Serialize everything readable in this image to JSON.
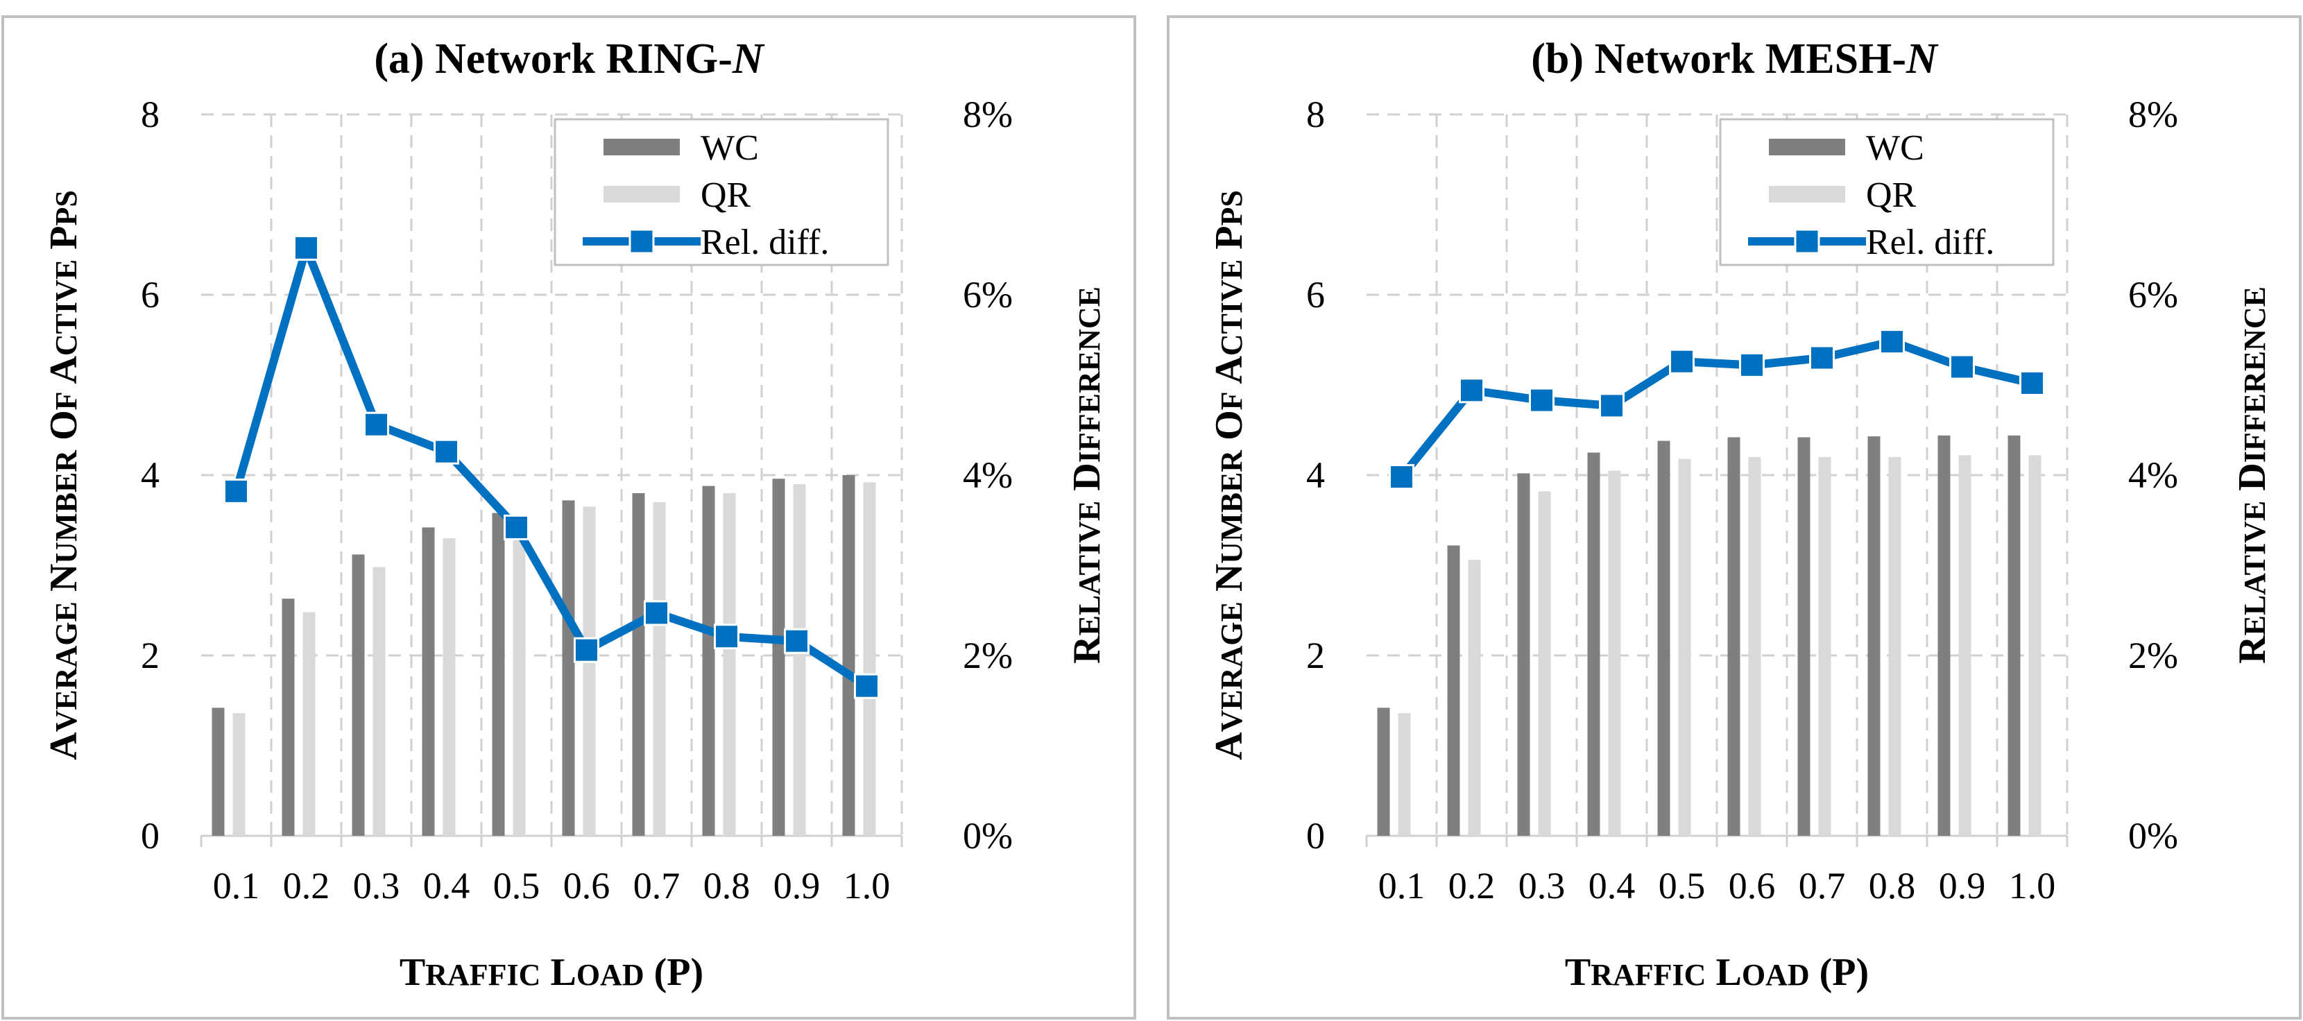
{
  "chart_data": [
    {
      "type": "bar",
      "title_prefix": "(a) Network RING-",
      "title_italic": "N",
      "xlabel": "Traffic load (ρ)",
      "ylabel": "Average number of active PPs",
      "y2label": "Relative difference",
      "categories": [
        "0.1",
        "0.2",
        "0.3",
        "0.4",
        "0.5",
        "0.6",
        "0.7",
        "0.8",
        "0.9",
        "1.0"
      ],
      "ylim": [
        0,
        8
      ],
      "yticks": [
        "0",
        "2",
        "4",
        "6",
        "8"
      ],
      "y2lim": [
        0,
        8
      ],
      "y2ticks": [
        "0%",
        "2%",
        "4%",
        "6%",
        "8%"
      ],
      "grid": true,
      "legend_position": "top-right",
      "series": [
        {
          "name": "WC",
          "kind": "bar",
          "axis": "left",
          "color": "#7f7f7f",
          "values": [
            1.42,
            2.63,
            3.12,
            3.42,
            3.58,
            3.72,
            3.8,
            3.88,
            3.96,
            4.0
          ]
        },
        {
          "name": "QR",
          "kind": "bar",
          "axis": "left",
          "color": "#d9d9d9",
          "values": [
            1.36,
            2.48,
            2.98,
            3.3,
            3.48,
            3.65,
            3.7,
            3.8,
            3.9,
            3.92
          ]
        },
        {
          "name": "Rel. diff.",
          "kind": "line",
          "axis": "right",
          "color": "#0070c0",
          "values": [
            3.82,
            6.52,
            4.56,
            4.26,
            3.42,
            2.06,
            2.47,
            2.21,
            2.16,
            1.66
          ]
        }
      ]
    },
    {
      "type": "bar",
      "title_prefix": "(b) Network MESH-",
      "title_italic": "N",
      "xlabel": "Traffic load (ρ)",
      "ylabel": "Average number of active PPs",
      "y2label": "Relative difference",
      "categories": [
        "0.1",
        "0.2",
        "0.3",
        "0.4",
        "0.5",
        "0.6",
        "0.7",
        "0.8",
        "0.9",
        "1.0"
      ],
      "ylim": [
        0,
        8
      ],
      "yticks": [
        "0",
        "2",
        "4",
        "6",
        "8"
      ],
      "y2lim": [
        0,
        8
      ],
      "y2ticks": [
        "0%",
        "2%",
        "4%",
        "6%",
        "8%"
      ],
      "grid": true,
      "legend_position": "top-right",
      "series": [
        {
          "name": "WC",
          "kind": "bar",
          "axis": "left",
          "color": "#7f7f7f",
          "values": [
            1.42,
            3.22,
            4.02,
            4.25,
            4.38,
            4.42,
            4.42,
            4.43,
            4.44,
            4.44
          ]
        },
        {
          "name": "QR",
          "kind": "bar",
          "axis": "left",
          "color": "#d9d9d9",
          "values": [
            1.36,
            3.06,
            3.82,
            4.05,
            4.18,
            4.2,
            4.2,
            4.2,
            4.22,
            4.22
          ]
        },
        {
          "name": "Rel. diff.",
          "kind": "line",
          "axis": "right",
          "color": "#0070c0",
          "values": [
            3.98,
            4.94,
            4.83,
            4.77,
            5.26,
            5.22,
            5.3,
            5.48,
            5.2,
            5.02
          ]
        }
      ]
    }
  ]
}
